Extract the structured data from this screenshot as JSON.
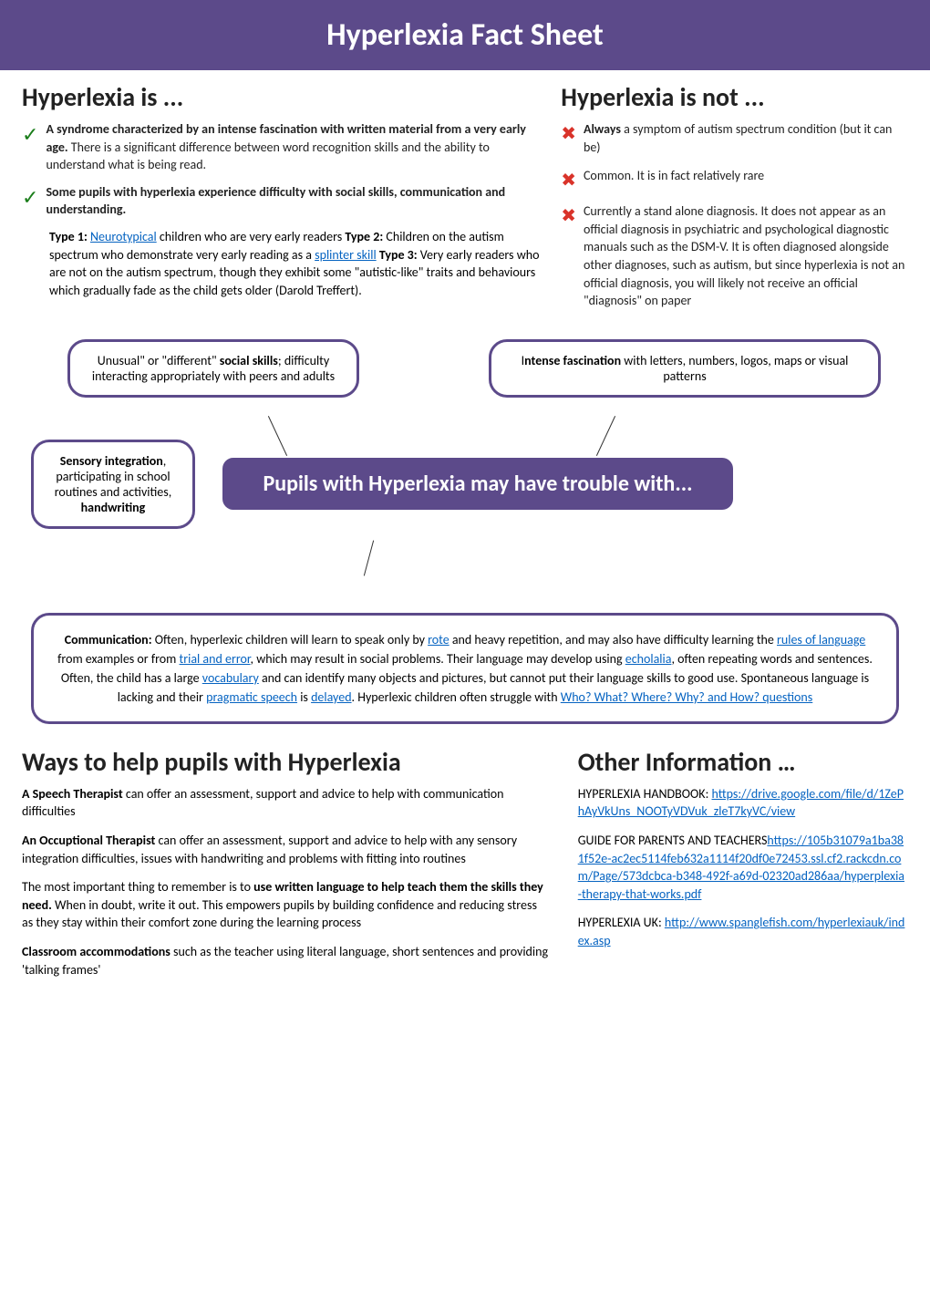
{
  "header": {
    "title": "Hyperlexia Fact Sheet"
  },
  "is": {
    "title": "Hyperlexia is ...",
    "check1_bold": "A syndrome characterized by an intense fascination with written material from a very early age.",
    "check1_rest": " There is a significant difference between word recognition skills and the ability to understand what is being read.",
    "check2": "Some pupils with hyperlexia experience difficulty with social skills, communication and understanding.",
    "types_pre1": "Type 1: ",
    "types_link1": "Neurotypical",
    "types_mid1": " children who are very early readers ",
    "types_pre2": "Type 2: ",
    "types_mid2": "Children on the autism spectrum who demonstrate very early reading as a ",
    "types_link2": "splinter skill",
    "types_pre3": " Type 3: ",
    "types_rest": "Very early readers who are not on the autism spectrum, though they exhibit some \"autistic-like\" traits and behaviours which gradually fade as the child gets older (Darold Treffert)."
  },
  "isnot": {
    "title": "Hyperlexia is not ...",
    "x1_bold": "Always",
    "x1_rest": " a symptom of autism spectrum condition (but it can be)",
    "x2": "Common. It is in fact relatively rare",
    "x3": "Currently a stand alone diagnosis. It does not appear as an official diagnosis in psychiatric and psychological diagnostic manuals such as the DSM-V. It is often diagnosed alongside other diagnoses, such as autism, but since hyperlexia is not an official diagnosis, you will likely not receive an official \"diagnosis\" on paper"
  },
  "bubbles": {
    "b1_pre": "Unusual\" or \"different\" ",
    "b1_bold": "social skills",
    "b1_rest": "; difficulty interacting appropriately with peers and adults",
    "b2_pre": "I",
    "b2_bold": "ntense fascination",
    "b2_rest": " with letters, numbers, logos, maps or visual patterns",
    "b3_bold1": "Sensory integration",
    "b3_mid": ", participating in school routines and activities, ",
    "b3_bold2": "handwriting",
    "center": "Pupils with Hyperlexia may have trouble with..."
  },
  "comm": {
    "bold": "Communication:",
    "t1": " Often, hyperlexic children will  learn to speak only by ",
    "link1": "rote",
    "t2": " and heavy repetition, and may also have difficulty learning the ",
    "link2": "rules of language",
    "t3": " from examples or from ",
    "link3": "trial and error",
    "t4": ", which may result in social problems. Their language may develop using ",
    "link4": "echolalia",
    "t5": ", often repeating words and sentences. Often, the child has a large ",
    "link5": "vocabulary",
    "t6": " and can identify many objects and pictures, but cannot put their language skills to good use. Spontaneous language is lacking and their ",
    "link6": "pragmatic speech",
    "t7": " is ",
    "link7": "delayed",
    "t8": ". Hyperlexic children often struggle with ",
    "link8": "Who? What? Where? Why? and How? questions"
  },
  "ways": {
    "title": "Ways to help pupils with Hyperlexia",
    "p1_bold": "A Speech Therapist",
    "p1_rest": " can offer an assessment, support and advice to help with communication difficulties",
    "p2_bold": "An Occuptional Therapist",
    "p2_rest": " can offer an assessment, support and advice to help with any sensory integration difficulties, issues with handwriting and problems with fitting into routines",
    "p3_pre": "The most important thing to remember is to ",
    "p3_bold": "use written language to help teach them the skills they need.",
    "p3_rest": " When in doubt, write it out. This empowers pupils by building confidence and reducing stress as they stay within their comfort zone during the learning process",
    "p4_bold": "Classroom accommodations",
    "p4_rest": " such as the teacher using literal language, short sentences and providing 'talking frames'"
  },
  "other": {
    "title": "Other Information  …",
    "h1_pre": "HYPERLEXIA HANDBOOK: ",
    "h1_link": "https://drive.google.com/file/d/1ZePhAyVkUns_NOOTyVDVuk_zleT7kyVC/view",
    "h2_pre": "GUIDE FOR PARENTS AND TEACHERS",
    "h2_link": "https://105b31079a1ba381f52e-ac2ec5114feb632a1114f20df0e72453.ssl.cf2.rackcdn.com/Page/573dcbca-b348-492f-a69d-02320ad286aa/hyperplexia-therapy-that-works.pdf",
    "h3_pre": "HYPERLEXIA UK: ",
    "h3_link": "http://www.spanglefish.com/hyperlexiauk/index.asp"
  }
}
